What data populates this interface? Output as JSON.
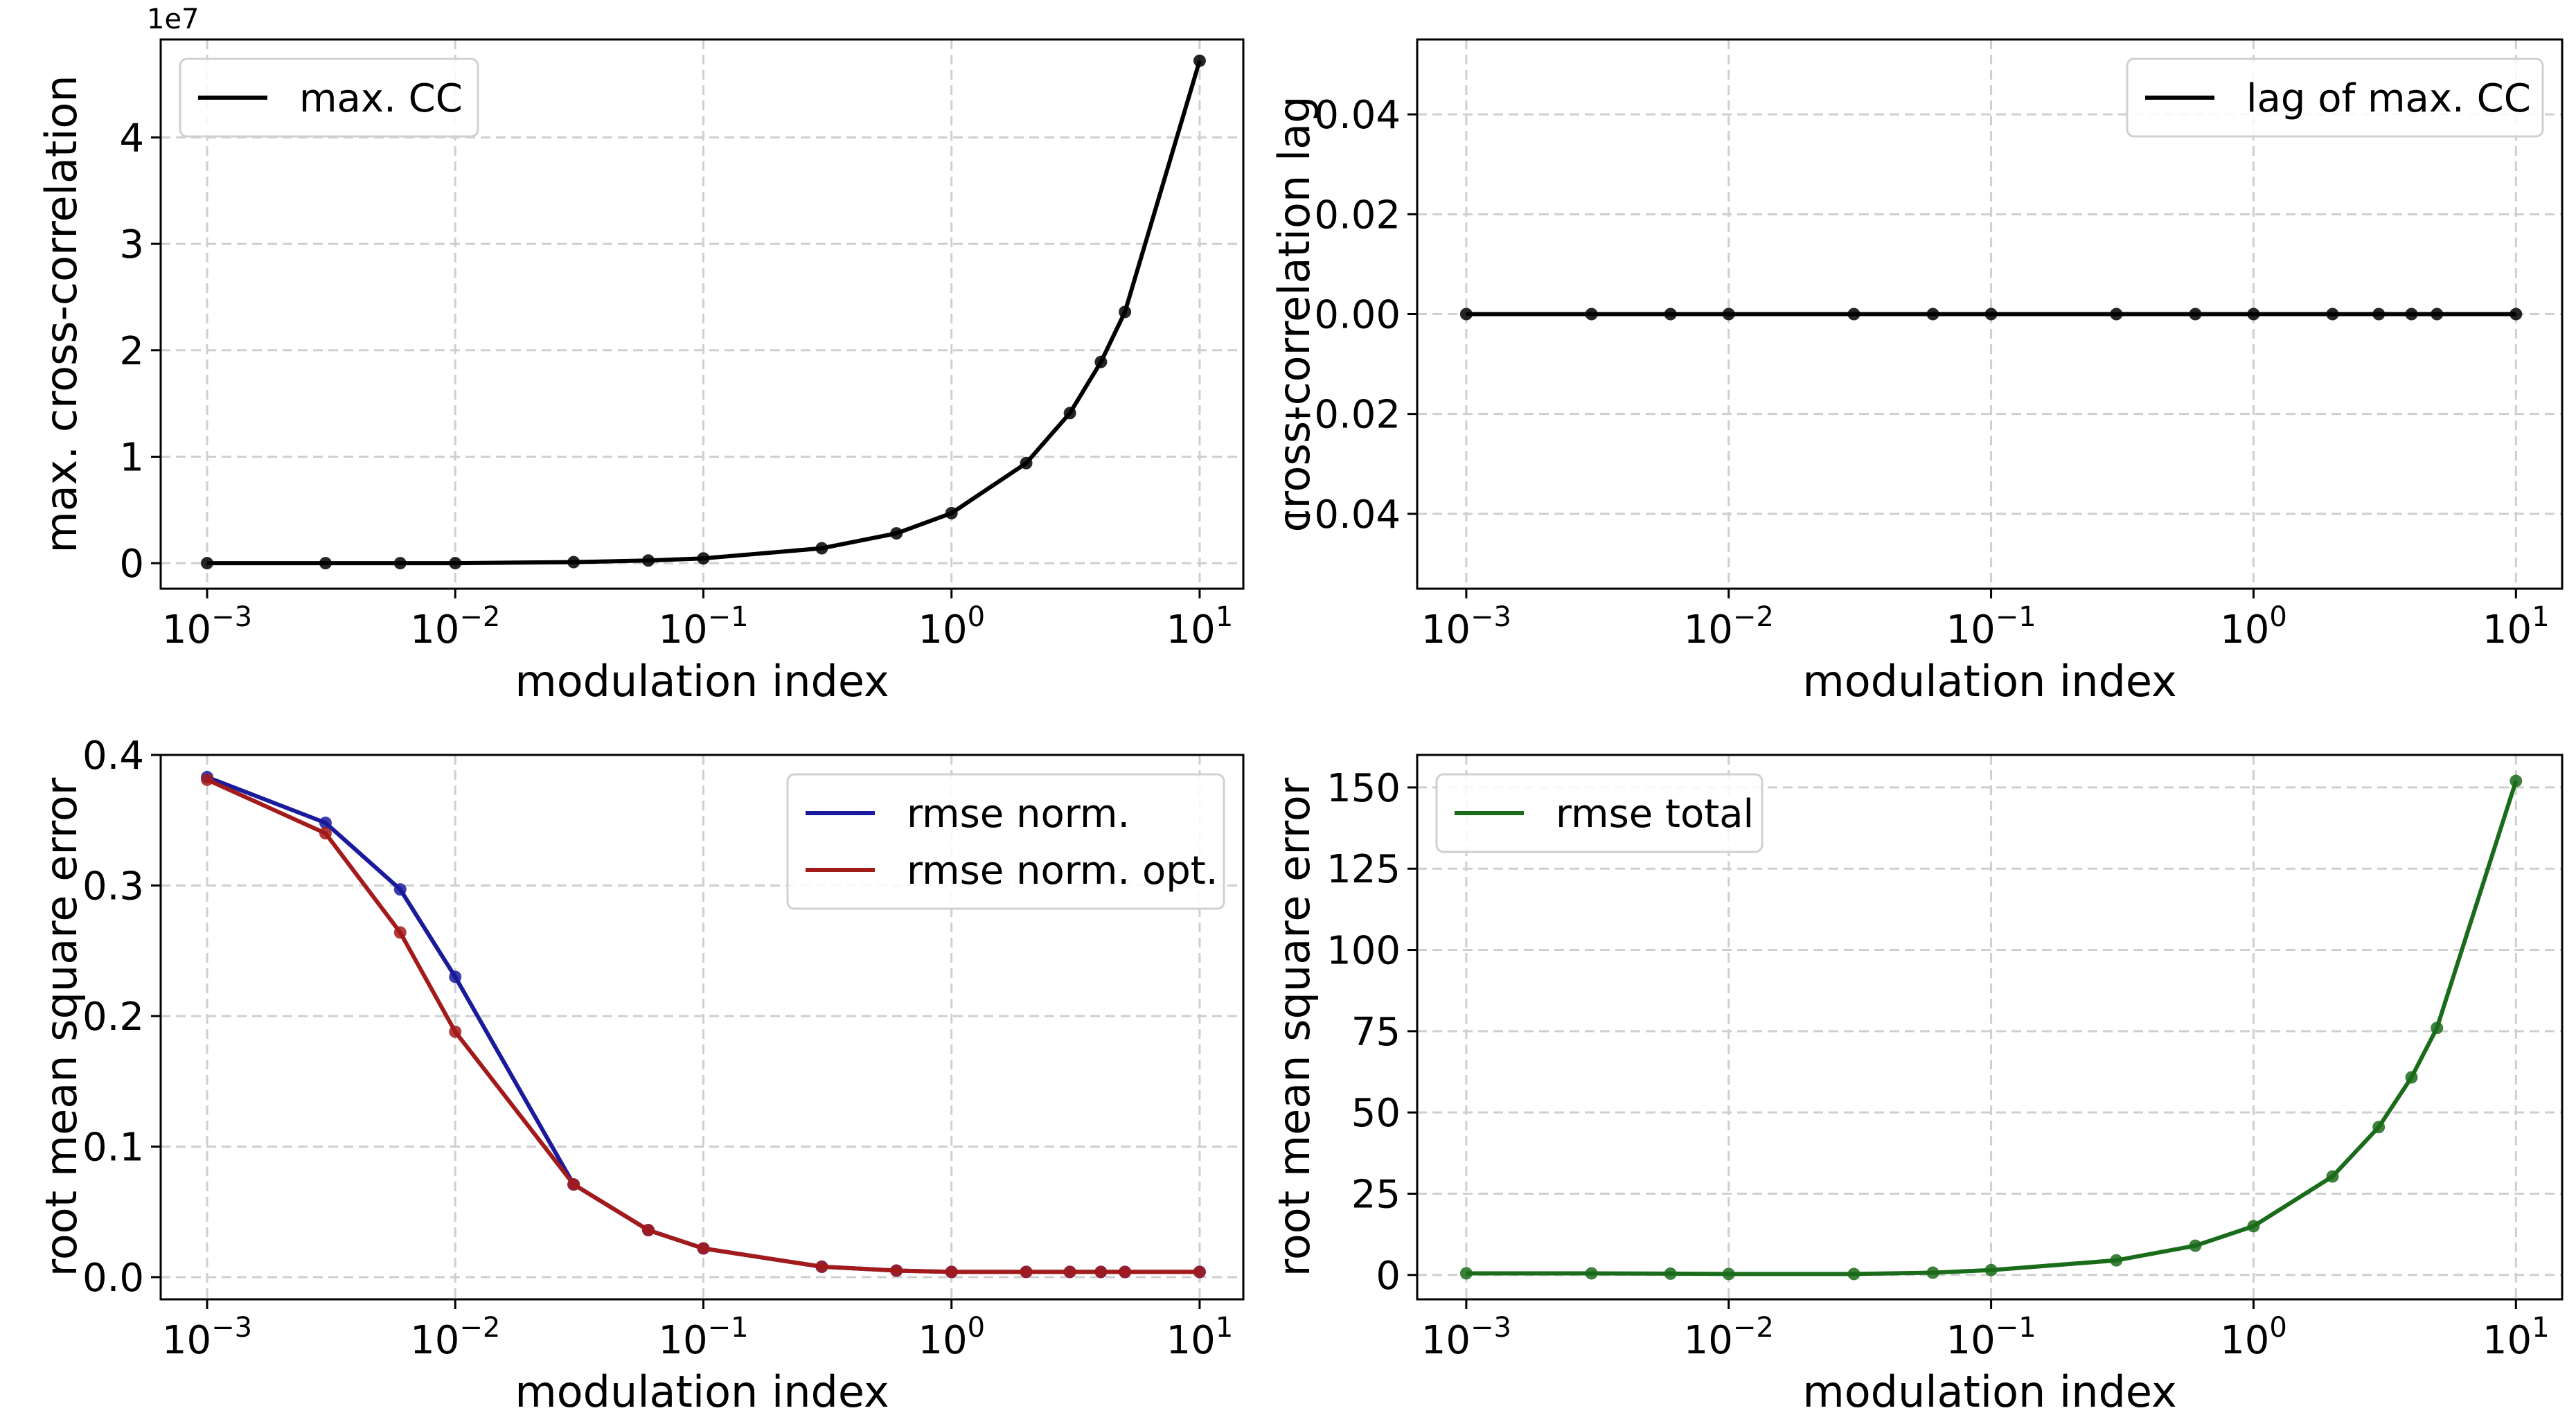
{
  "chart_data": [
    {
      "type": "line",
      "xscale": "log",
      "xlim": [
        0.00065,
        15
      ],
      "ylim": [
        -2400000,
        49200000
      ],
      "xlabel": "modulation index",
      "ylabel": "max. cross-correlation",
      "y_offset_label": "1e7",
      "x_tick_values": [
        0.001,
        0.01,
        0.1,
        1,
        10
      ],
      "x_tick_bases": [
        "10",
        "10",
        "10",
        "10",
        "10"
      ],
      "x_tick_exponents": [
        "−3",
        "−2",
        "−1",
        "0",
        "1"
      ],
      "y_tick_values": [
        0,
        10000000,
        20000000,
        30000000,
        40000000
      ],
      "y_tick_labels": [
        "0",
        "1",
        "2",
        "3",
        "4"
      ],
      "grid": true,
      "legend_position": "upper left",
      "series": [
        {
          "name": "max. CC",
          "color": "#000000",
          "x": [
            0.001,
            0.003,
            0.006,
            0.01,
            0.03,
            0.06,
            0.1,
            0.3,
            0.6,
            1,
            2,
            3,
            4,
            5,
            10
          ],
          "y": [
            0,
            0,
            0,
            0,
            100000,
            250000,
            450000,
            1400000,
            2800000,
            4700000,
            9400000,
            14100000,
            18900000,
            23600000,
            47200000
          ]
        }
      ]
    },
    {
      "type": "line",
      "xscale": "log",
      "xlim": [
        0.00065,
        15
      ],
      "ylim": [
        -0.055,
        0.055
      ],
      "xlabel": "modulation index",
      "ylabel": "cross-correlation lag",
      "x_tick_values": [
        0.001,
        0.01,
        0.1,
        1,
        10
      ],
      "x_tick_bases": [
        "10",
        "10",
        "10",
        "10",
        "10"
      ],
      "x_tick_exponents": [
        "−3",
        "−2",
        "−1",
        "0",
        "1"
      ],
      "y_tick_values": [
        -0.04,
        -0.02,
        0,
        0.02,
        0.04
      ],
      "y_tick_labels": [
        "−0.04",
        "−0.02",
        "0.00",
        "0.02",
        "0.04"
      ],
      "grid": true,
      "legend_position": "upper right",
      "series": [
        {
          "name": "lag of max. CC",
          "color": "#000000",
          "x": [
            0.001,
            0.003,
            0.006,
            0.01,
            0.03,
            0.06,
            0.1,
            0.3,
            0.6,
            1,
            2,
            3,
            4,
            5,
            10
          ],
          "y": [
            0,
            0,
            0,
            0,
            0,
            0,
            0,
            0,
            0,
            0,
            0,
            0,
            0,
            0,
            0
          ]
        }
      ]
    },
    {
      "type": "line",
      "xscale": "log",
      "xlim": [
        0.00065,
        15
      ],
      "ylim": [
        -0.017,
        0.4
      ],
      "xlabel": "modulation index",
      "ylabel": "root mean square error",
      "x_tick_values": [
        0.001,
        0.01,
        0.1,
        1,
        10
      ],
      "x_tick_bases": [
        "10",
        "10",
        "10",
        "10",
        "10"
      ],
      "x_tick_exponents": [
        "−3",
        "−2",
        "−1",
        "0",
        "1"
      ],
      "y_tick_values": [
        0,
        0.1,
        0.2,
        0.3,
        0.4
      ],
      "y_tick_labels": [
        "0.0",
        "0.1",
        "0.2",
        "0.3",
        "0.4"
      ],
      "grid": true,
      "legend_position": "upper right",
      "series": [
        {
          "name": "rmse norm.",
          "color": "#1a1a9c",
          "x": [
            0.001,
            0.003,
            0.006,
            0.01,
            0.03,
            0.06,
            0.1,
            0.3,
            0.6,
            1,
            2,
            3,
            4,
            5,
            10
          ],
          "y": [
            0.383,
            0.348,
            0.297,
            0.23,
            0.071,
            0.036,
            0.022,
            0.008,
            0.005,
            0.004,
            0.004,
            0.004,
            0.004,
            0.004,
            0.004
          ]
        },
        {
          "name": "rmse norm. opt.",
          "color": "#a31a1a",
          "x": [
            0.001,
            0.003,
            0.006,
            0.01,
            0.03,
            0.06,
            0.1,
            0.3,
            0.6,
            1,
            2,
            3,
            4,
            5,
            10
          ],
          "y": [
            0.381,
            0.34,
            0.264,
            0.188,
            0.071,
            0.036,
            0.022,
            0.008,
            0.005,
            0.004,
            0.004,
            0.004,
            0.004,
            0.004,
            0.004
          ]
        }
      ]
    },
    {
      "type": "line",
      "xscale": "log",
      "xlim": [
        0.00065,
        15
      ],
      "ylim": [
        -7.5,
        160
      ],
      "xlabel": "modulation index",
      "ylabel": "root mean square error",
      "x_tick_values": [
        0.001,
        0.01,
        0.1,
        1,
        10
      ],
      "x_tick_bases": [
        "10",
        "10",
        "10",
        "10",
        "10"
      ],
      "x_tick_exponents": [
        "−3",
        "−2",
        "−1",
        "0",
        "1"
      ],
      "y_tick_values": [
        0,
        25,
        50,
        75,
        100,
        125,
        150
      ],
      "y_tick_labels": [
        "0",
        "25",
        "50",
        "75",
        "100",
        "125",
        "150"
      ],
      "grid": true,
      "legend_position": "upper left",
      "series": [
        {
          "name": "rmse total",
          "color": "#1a6b1a",
          "x": [
            0.001,
            0.003,
            0.006,
            0.01,
            0.03,
            0.06,
            0.1,
            0.3,
            0.6,
            1,
            2,
            3,
            4,
            5,
            10
          ],
          "y": [
            0.5,
            0.5,
            0.4,
            0.3,
            0.3,
            0.7,
            1.5,
            4.5,
            9,
            15,
            30.3,
            45.5,
            60.8,
            76,
            152
          ]
        }
      ]
    }
  ]
}
